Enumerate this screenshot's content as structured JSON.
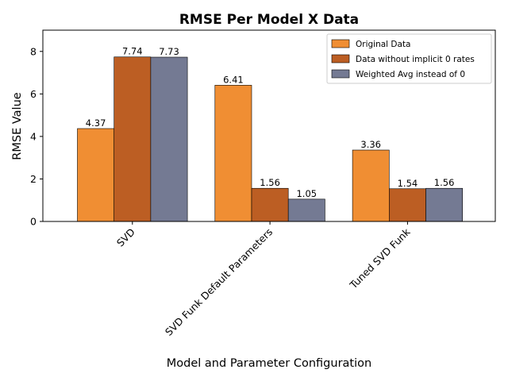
{
  "chart_data": {
    "type": "bar",
    "title": "RMSE Per Model X Data",
    "xlabel": "Model and Parameter Configuration",
    "ylabel": "RMSE Value",
    "categories": [
      "SVD",
      "SVD Funk Default Parameters",
      "Tuned SVD Funk"
    ],
    "series": [
      {
        "name": "Original Data",
        "values": [
          4.37,
          6.41,
          3.36
        ],
        "labels": [
          "4.37",
          "6.41",
          "3.36"
        ],
        "color": "#f08e33"
      },
      {
        "name": "Data without implicit 0 rates",
        "values": [
          7.74,
          1.56,
          1.54
        ],
        "labels": [
          "7.74",
          "1.56",
          "1.54"
        ],
        "color": "#bc5e23"
      },
      {
        "name": "Weighted Avg instead of 0",
        "values": [
          7.73,
          1.05,
          1.56
        ],
        "labels": [
          "7.73",
          "1.05",
          "1.56"
        ],
        "color": "#747a93"
      }
    ],
    "ylim": [
      0,
      9
    ],
    "yticks": [
      0,
      2,
      4,
      6,
      8
    ],
    "ytick_labels": [
      "0",
      "2",
      "4",
      "6",
      "8"
    ],
    "grid": false,
    "legend_position": "top-right"
  }
}
